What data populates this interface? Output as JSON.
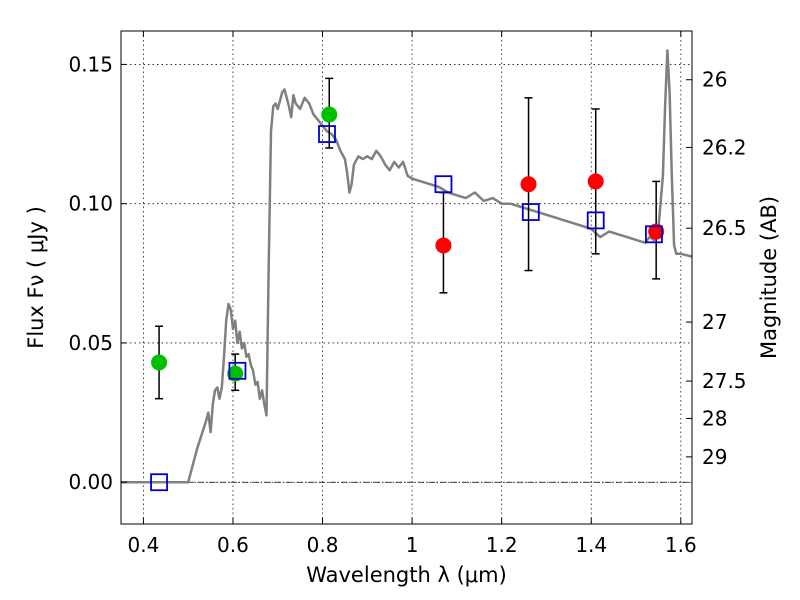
{
  "chart_data": {
    "type": "scatter",
    "xlabel": "Wavelength  λ (μm)",
    "ylabel": "Flux  Fν  ( μJy )",
    "y2label": "Magnitude (AB)",
    "xlim": [
      0.35,
      1.625
    ],
    "ylim": [
      -0.015,
      0.162
    ],
    "grid": true,
    "x_ticks": [
      0.4,
      0.6,
      0.8,
      1.0,
      1.2,
      1.4,
      1.6
    ],
    "x_tick_labels": [
      "0.4",
      "0.6",
      "0.8",
      "1",
      "1.2",
      "1.4",
      "1.6"
    ],
    "y_ticks": [
      0.0,
      0.05,
      0.1,
      0.15
    ],
    "y_tick_labels": [
      "0.00",
      "0.05",
      "0.10",
      "0.15"
    ],
    "y2_ticks": [
      {
        "label": "26",
        "flux": 0.1445
      },
      {
        "label": "26.2",
        "flux": 0.1202
      },
      {
        "label": "26.5",
        "flux": 0.0912
      },
      {
        "label": "27",
        "flux": 0.0575
      },
      {
        "label": "27.5",
        "flux": 0.0363
      },
      {
        "label": "28",
        "flux": 0.0229
      },
      {
        "label": "29",
        "flux": 0.0091
      }
    ],
    "zero_line": 0.0,
    "colors": {
      "model": "#808080",
      "green": "#00c000",
      "red": "#ff0000",
      "squares": "#0000cc",
      "errorbar": "#000000"
    },
    "model_spectrum": {
      "x": [
        0.35,
        0.5,
        0.52,
        0.54,
        0.545,
        0.55,
        0.555,
        0.56,
        0.565,
        0.57,
        0.575,
        0.58,
        0.585,
        0.59,
        0.595,
        0.6,
        0.605,
        0.61,
        0.615,
        0.62,
        0.625,
        0.63,
        0.635,
        0.64,
        0.645,
        0.65,
        0.655,
        0.66,
        0.665,
        0.67,
        0.675,
        0.68,
        0.685,
        0.69,
        0.695,
        0.7,
        0.705,
        0.71,
        0.715,
        0.72,
        0.725,
        0.73,
        0.735,
        0.74,
        0.75,
        0.76,
        0.77,
        0.78,
        0.79,
        0.8,
        0.81,
        0.82,
        0.83,
        0.84,
        0.85,
        0.855,
        0.86,
        0.865,
        0.87,
        0.88,
        0.89,
        0.9,
        0.91,
        0.92,
        0.93,
        0.94,
        0.95,
        0.96,
        0.97,
        0.98,
        0.99,
        1.0,
        1.02,
        1.04,
        1.06,
        1.08,
        1.1,
        1.12,
        1.14,
        1.16,
        1.18,
        1.2,
        1.22,
        1.24,
        1.26,
        1.28,
        1.3,
        1.32,
        1.34,
        1.36,
        1.38,
        1.4,
        1.42,
        1.44,
        1.46,
        1.48,
        1.5,
        1.52,
        1.53,
        1.54,
        1.55,
        1.56,
        1.565,
        1.57,
        1.575,
        1.58,
        1.585,
        1.59,
        1.6,
        1.625
      ],
      "y": [
        0.0,
        0.0,
        0.012,
        0.022,
        0.025,
        0.018,
        0.028,
        0.033,
        0.034,
        0.03,
        0.034,
        0.045,
        0.058,
        0.064,
        0.062,
        0.055,
        0.058,
        0.05,
        0.054,
        0.048,
        0.05,
        0.045,
        0.046,
        0.042,
        0.04,
        0.035,
        0.036,
        0.03,
        0.033,
        0.028,
        0.024,
        0.08,
        0.126,
        0.135,
        0.136,
        0.134,
        0.137,
        0.14,
        0.141,
        0.138,
        0.135,
        0.131,
        0.139,
        0.136,
        0.134,
        0.138,
        0.136,
        0.132,
        0.13,
        0.128,
        0.126,
        0.125,
        0.123,
        0.119,
        0.116,
        0.111,
        0.104,
        0.107,
        0.114,
        0.117,
        0.116,
        0.117,
        0.116,
        0.119,
        0.117,
        0.114,
        0.112,
        0.115,
        0.113,
        0.115,
        0.11,
        0.109,
        0.108,
        0.107,
        0.106,
        0.104,
        0.103,
        0.102,
        0.104,
        0.101,
        0.102,
        0.1,
        0.1,
        0.099,
        0.098,
        0.097,
        0.096,
        0.095,
        0.094,
        0.093,
        0.092,
        0.091,
        0.088,
        0.09,
        0.089,
        0.088,
        0.087,
        0.086,
        0.088,
        0.087,
        0.091,
        0.11,
        0.135,
        0.155,
        0.14,
        0.11,
        0.085,
        0.082,
        0.082,
        0.081
      ]
    },
    "green_points": [
      {
        "x": 0.435,
        "y": 0.043,
        "ylo": 0.03,
        "yhi": 0.056
      },
      {
        "x": 0.605,
        "y": 0.039,
        "ylo": 0.033,
        "yhi": 0.046
      },
      {
        "x": 0.815,
        "y": 0.132,
        "ylo": 0.12,
        "yhi": 0.145
      }
    ],
    "red_points": [
      {
        "x": 1.07,
        "y": 0.085,
        "ylo": 0.068,
        "yhi": 0.104
      },
      {
        "x": 1.26,
        "y": 0.107,
        "ylo": 0.076,
        "yhi": 0.138
      },
      {
        "x": 1.41,
        "y": 0.108,
        "ylo": 0.082,
        "yhi": 0.134
      },
      {
        "x": 1.545,
        "y": 0.09,
        "ylo": 0.073,
        "yhi": 0.108
      }
    ],
    "square_points": [
      {
        "x": 0.435,
        "y": 0.0
      },
      {
        "x": 0.61,
        "y": 0.04
      },
      {
        "x": 0.81,
        "y": 0.125
      },
      {
        "x": 1.07,
        "y": 0.107
      },
      {
        "x": 1.265,
        "y": 0.097
      },
      {
        "x": 1.41,
        "y": 0.094
      },
      {
        "x": 1.54,
        "y": 0.089
      }
    ]
  }
}
